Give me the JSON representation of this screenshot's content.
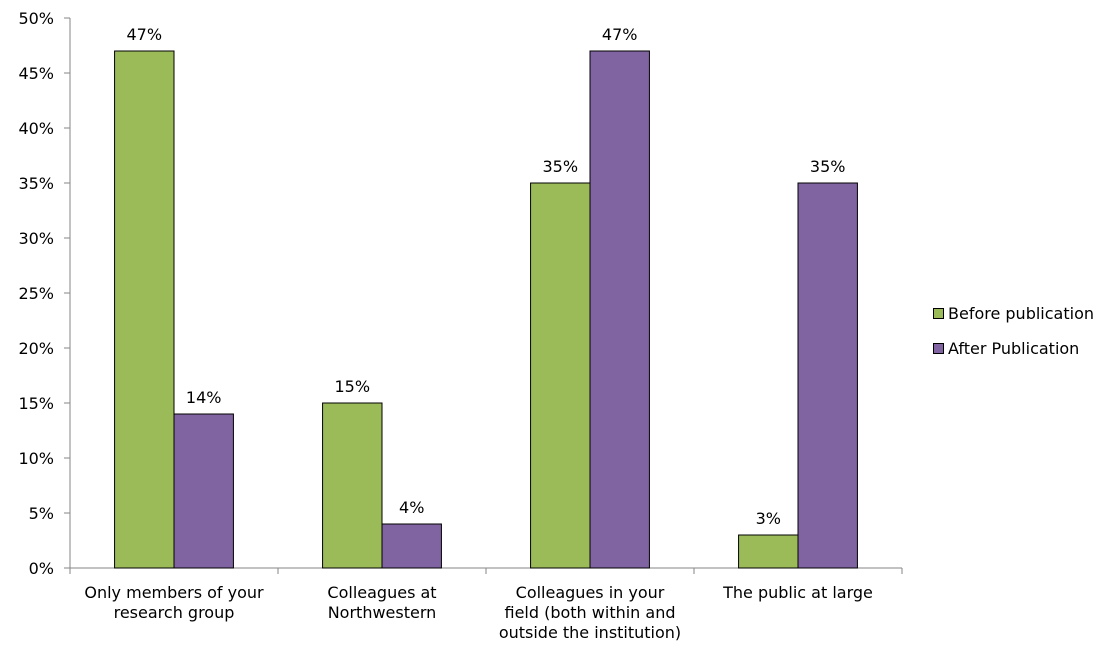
{
  "chart_data": {
    "type": "bar",
    "categories": [
      [
        "Only members of your",
        "research group"
      ],
      [
        "Colleagues at",
        "Northwestern"
      ],
      [
        "Colleagues in your",
        "field (both within and",
        "outside the institution)"
      ],
      [
        "The public at large"
      ]
    ],
    "series": [
      {
        "name": "Before publication",
        "color": "#9BBB59",
        "values": [
          47,
          15,
          35,
          3
        ]
      },
      {
        "name": "After Publication",
        "color": "#8064A2",
        "values": [
          14,
          4,
          47,
          35
        ]
      }
    ],
    "ylim": [
      0,
      50
    ],
    "yticks": [
      0,
      5,
      10,
      15,
      20,
      25,
      30,
      35,
      40,
      45,
      50
    ],
    "ytick_suffix": "%",
    "grid": false,
    "legend_position": "right"
  }
}
